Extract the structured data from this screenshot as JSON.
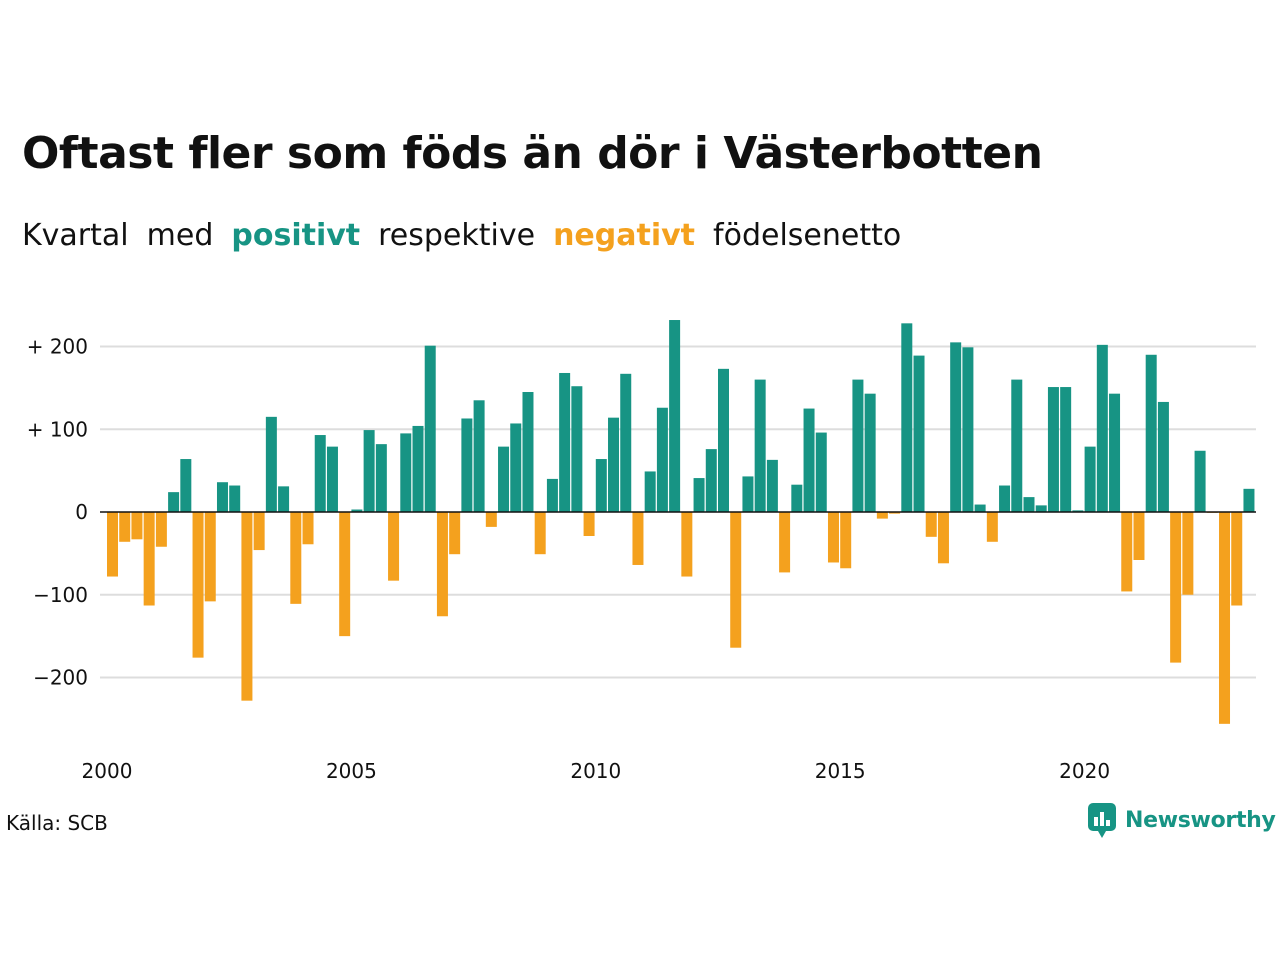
{
  "title": "Oftast fler som föds än dör i Västerbotten",
  "subtitle": {
    "w1": "Kvartal",
    "w2": "med",
    "positive": "positivt",
    "w3": "respektive",
    "negative": "negativt",
    "w4": "födelsenetto"
  },
  "colors": {
    "positive": "#179484",
    "negative": "#f4a11e",
    "grid": "#dddddd",
    "text": "#111111"
  },
  "source": "Källa: SCB",
  "logo": {
    "text": "Newsworthy",
    "icon": "newsworthy-logo-icon"
  },
  "chart_data": {
    "type": "bar",
    "ylim": [
      -260,
      235
    ],
    "yticks": [
      {
        "value": 200,
        "label": "+ 200"
      },
      {
        "value": 100,
        "label": "+ 100"
      },
      {
        "value": 0,
        "label": "0"
      },
      {
        "value": -100,
        "label": "−100"
      },
      {
        "value": -200,
        "label": "−200"
      }
    ],
    "xticks": [
      "2000",
      "2005",
      "2010",
      "2015",
      "2020"
    ],
    "start_year": 2000,
    "grid": true,
    "values": [
      -78,
      -36,
      -33,
      -113,
      -42,
      24,
      64,
      -176,
      -108,
      36,
      32,
      -228,
      -46,
      115,
      31,
      -111,
      -39,
      93,
      79,
      -150,
      3,
      99,
      82,
      -83,
      95,
      104,
      201,
      -126,
      -51,
      113,
      135,
      -18,
      79,
      107,
      145,
      -51,
      40,
      168,
      152,
      -29,
      64,
      114,
      167,
      -64,
      49,
      126,
      232,
      -78,
      41,
      76,
      173,
      -164,
      43,
      160,
      63,
      -73,
      33,
      125,
      96,
      -61,
      -68,
      160,
      143,
      -8,
      -2,
      228,
      189,
      -30,
      -62,
      205,
      199,
      9,
      -36,
      32,
      160,
      18,
      8,
      151,
      151,
      2,
      79,
      202,
      143,
      -96,
      -58,
      190,
      133,
      -182,
      -100,
      74,
      -1,
      -256,
      -113,
      28
    ]
  }
}
